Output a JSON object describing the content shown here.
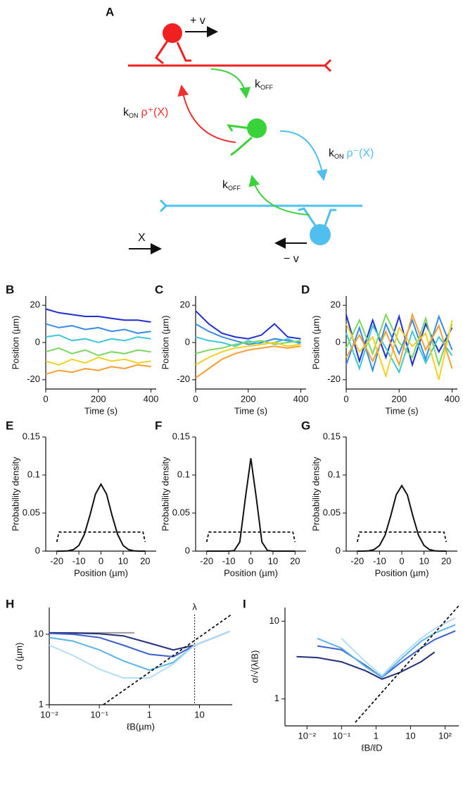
{
  "diagram": {
    "panel": "A",
    "plus_v": "+ v",
    "minus_v": "− v",
    "direction": "X",
    "k_off_top": {
      "k": "k",
      "sub": "OFF"
    },
    "k_off_bottom": {
      "k": "k",
      "sub": "OFF"
    },
    "k_on_plus": {
      "k": "k",
      "sub": "ON",
      "rate": "ρ⁺(X)"
    },
    "k_on_minus": {
      "k": "k",
      "sub": "ON",
      "rate": "ρ⁻(X)"
    }
  },
  "chart_data": [
    {
      "type": "line",
      "panel": "B",
      "xlabel": "Time (s)",
      "ylabel": "Position (µm)",
      "x": [
        0,
        50,
        100,
        150,
        200,
        250,
        300,
        350,
        400
      ],
      "xlim": [
        0,
        420
      ],
      "ylim": [
        -25,
        25
      ],
      "xticks": [
        0,
        200,
        400
      ],
      "yticks": [
        -20,
        0,
        20
      ],
      "series": [
        {
          "color": "#1f2fd0",
          "values": [
            18,
            16,
            15,
            14,
            14,
            13,
            12,
            12,
            11
          ]
        },
        {
          "color": "#3a8ae8",
          "values": [
            10,
            8,
            9,
            7,
            8,
            6,
            7,
            5,
            6
          ]
        },
        {
          "color": "#3cc8d8",
          "values": [
            3,
            4,
            1,
            2,
            0,
            2,
            1,
            3,
            2
          ]
        },
        {
          "color": "#7ad860",
          "values": [
            -5,
            -3,
            -6,
            -4,
            -7,
            -5,
            -6,
            -4,
            -5
          ]
        },
        {
          "color": "#f5d020",
          "values": [
            -10,
            -12,
            -9,
            -11,
            -8,
            -10,
            -9,
            -11,
            -10
          ]
        },
        {
          "color": "#f5a030",
          "values": [
            -17,
            -15,
            -16,
            -14,
            -15,
            -13,
            -14,
            -12,
            -13
          ]
        }
      ]
    },
    {
      "type": "line",
      "panel": "C",
      "xlabel": "Time (s)",
      "ylabel": "Position (µm)",
      "x": [
        0,
        50,
        100,
        150,
        200,
        250,
        300,
        350,
        400
      ],
      "xlim": [
        0,
        420
      ],
      "ylim": [
        -25,
        25
      ],
      "xticks": [
        0,
        200,
        400
      ],
      "yticks": [
        -20,
        0,
        20
      ],
      "series": [
        {
          "color": "#1f2fd0",
          "values": [
            17,
            10,
            5,
            3,
            2,
            4,
            10,
            3,
            2
          ]
        },
        {
          "color": "#3a8ae8",
          "values": [
            10,
            6,
            3,
            1,
            -1,
            0,
            2,
            1,
            0
          ]
        },
        {
          "color": "#3cc8d8",
          "values": [
            3,
            1,
            0,
            -2,
            1,
            -1,
            0,
            2,
            -1
          ]
        },
        {
          "color": "#7ad860",
          "values": [
            -6,
            -4,
            -3,
            -1,
            0,
            1,
            -1,
            0,
            1
          ]
        },
        {
          "color": "#f5d020",
          "values": [
            -12,
            -8,
            -5,
            -3,
            -2,
            -1,
            0,
            -2,
            -1
          ]
        },
        {
          "color": "#f5a030",
          "values": [
            -19,
            -14,
            -9,
            -6,
            -4,
            -3,
            -2,
            -3,
            -2
          ]
        }
      ]
    },
    {
      "type": "line",
      "panel": "D",
      "xlabel": "Time (s)",
      "ylabel": "Position (µm)",
      "x": [
        0,
        50,
        100,
        150,
        200,
        250,
        300,
        350,
        400
      ],
      "xlim": [
        0,
        420
      ],
      "ylim": [
        -25,
        25
      ],
      "xticks": [
        0,
        200,
        400
      ],
      "yticks": [
        -20,
        0,
        20
      ],
      "series": [
        {
          "color": "#1f2fd0",
          "values": [
            15,
            -10,
            12,
            -8,
            14,
            -12,
            10,
            -5,
            8
          ]
        },
        {
          "color": "#3a8ae8",
          "values": [
            -12,
            8,
            -15,
            10,
            -6,
            12,
            -9,
            14,
            -4
          ]
        },
        {
          "color": "#3cc8d8",
          "values": [
            5,
            -14,
            9,
            -3,
            -16,
            6,
            -11,
            3,
            -7
          ]
        },
        {
          "color": "#7ad860",
          "values": [
            -3,
            12,
            -6,
            15,
            0,
            -8,
            13,
            -12,
            10
          ]
        },
        {
          "color": "#f5d020",
          "values": [
            10,
            -5,
            3,
            -18,
            8,
            -2,
            5,
            -20,
            12
          ]
        },
        {
          "color": "#f5a030",
          "values": [
            -8,
            4,
            -10,
            6,
            -12,
            15,
            -4,
            9,
            -14
          ]
        }
      ]
    },
    {
      "type": "line",
      "panel": "E",
      "xlabel": "Position (µm)",
      "ylabel": "Probability density",
      "x": [
        -20,
        -17.5,
        -15,
        -12.5,
        -10,
        -7.5,
        -5,
        -2.5,
        0,
        2.5,
        5,
        7.5,
        10,
        12.5,
        15,
        17.5,
        20
      ],
      "xlim": [
        -25,
        25
      ],
      "ylim": [
        0,
        0.15
      ],
      "xticks": [
        -20,
        -10,
        0,
        10,
        20
      ],
      "yticks": [
        0,
        0.05,
        0.1,
        0.15
      ],
      "series": [
        {
          "color": "#111111",
          "values": [
            0,
            0,
            0.0004,
            0.0019,
            0.0075,
            0.022,
            0.047,
            0.075,
            0.088,
            0.075,
            0.047,
            0.022,
            0.0075,
            0.0019,
            0.0004,
            0,
            0
          ]
        },
        {
          "color": "#111111",
          "dash": true,
          "x": [
            -20,
            -19,
            19,
            20
          ],
          "values": [
            0.012,
            0.025,
            0.025,
            0.012
          ]
        }
      ]
    },
    {
      "type": "line",
      "panel": "F",
      "xlabel": "Position (µm)",
      "ylabel": "Probability density",
      "x": [
        -20,
        -17.5,
        -15,
        -12.5,
        -10,
        -7.5,
        -5,
        -2.5,
        0,
        2.5,
        5,
        7.5,
        10,
        12.5,
        15,
        17.5,
        20
      ],
      "xlim": [
        -25,
        25
      ],
      "ylim": [
        0,
        0.15
      ],
      "xticks": [
        -20,
        -10,
        0,
        10,
        20
      ],
      "yticks": [
        0,
        0.05,
        0.1,
        0.15
      ],
      "series": [
        {
          "color": "#111111",
          "values": [
            0,
            0,
            0,
            0,
            0,
            0.0007,
            0.012,
            0.069,
            0.122,
            0.069,
            0.012,
            0.0007,
            0,
            0,
            0,
            0,
            0
          ]
        },
        {
          "color": "#111111",
          "dash": true,
          "x": [
            -20,
            -19,
            19,
            20
          ],
          "values": [
            0.012,
            0.025,
            0.025,
            0.012
          ]
        }
      ]
    },
    {
      "type": "line",
      "panel": "G",
      "xlabel": "Position (µm)",
      "ylabel": "Probability density",
      "x": [
        -20,
        -17.5,
        -15,
        -12.5,
        -10,
        -7.5,
        -5,
        -2.5,
        0,
        2.5,
        5,
        7.5,
        10,
        12.5,
        15,
        17.5,
        20
      ],
      "xlim": [
        -25,
        25
      ],
      "ylim": [
        0,
        0.15
      ],
      "xticks": [
        -20,
        -10,
        0,
        10,
        20
      ],
      "yticks": [
        0,
        0.05,
        0.1,
        0.15
      ],
      "series": [
        {
          "color": "#111111",
          "values": [
            0,
            0,
            0.0004,
            0.0019,
            0.0074,
            0.021,
            0.046,
            0.074,
            0.086,
            0.074,
            0.046,
            0.021,
            0.0074,
            0.0019,
            0.0004,
            0,
            0
          ]
        },
        {
          "color": "#111111",
          "dash": true,
          "x": [
            -20,
            -19,
            19,
            20
          ],
          "values": [
            0.012,
            0.025,
            0.025,
            0.012
          ]
        }
      ]
    },
    {
      "type": "line",
      "panel": "H",
      "xlabel": "ℓB(µm)",
      "ylabel": "σ (µm)",
      "xscale": "log",
      "yscale": "log",
      "x": [
        0.01,
        0.03,
        0.1,
        0.3,
        1,
        3,
        8,
        20,
        40
      ],
      "xlim": [
        0.01,
        45
      ],
      "ylim": [
        1,
        24
      ],
      "xticks": [
        {
          "value": 0.01,
          "label": "10⁻²"
        },
        {
          "value": 0.1,
          "label": "10⁻¹"
        },
        1,
        10
      ],
      "yticks": [
        1,
        10
      ],
      "vline": {
        "x": 8,
        "label": "λ"
      },
      "series": [
        {
          "color": "#999999",
          "x": [
            0.01,
            0.5
          ],
          "values": [
            10.5,
            10.5
          ]
        },
        {
          "color": "#23307a",
          "values": [
            10.5,
            10.4,
            10.2,
            9.5,
            7.5,
            6,
            7,
            9,
            11
          ]
        },
        {
          "color": "#3a5fcf",
          "values": [
            10.3,
            10,
            9,
            7,
            5.2,
            4.8,
            7,
            9,
            11
          ]
        },
        {
          "color": "#5ab4e6",
          "values": [
            9,
            8,
            6,
            4.2,
            3.1,
            4,
            7,
            9,
            11
          ]
        },
        {
          "color": "#b3ddf5",
          "values": [
            7,
            5,
            3.2,
            2.4,
            2.4,
            3.8,
            7,
            9,
            11
          ]
        },
        {
          "color": "#111111",
          "dash": true,
          "x": [
            0.12,
            45
          ],
          "values": [
            1,
            19.4
          ]
        }
      ]
    },
    {
      "type": "line",
      "panel": "I",
      "xlabel": "ℓB/ℓD",
      "ylabel": "σ/√(λℓB)",
      "xscale": "log",
      "yscale": "log",
      "x": [
        0.005,
        0.02,
        0.1,
        0.5,
        1.5,
        5,
        20,
        50,
        200
      ],
      "xlim": [
        0.0023,
        250
      ],
      "ylim": [
        0.45,
        15
      ],
      "xticks": [
        {
          "value": 0.01,
          "label": "10⁻²"
        },
        {
          "value": 0.1,
          "label": "10⁻¹"
        },
        1,
        10,
        {
          "value": 100,
          "label": "10²"
        }
      ],
      "yticks": [
        1,
        10
      ],
      "series": [
        {
          "color": "#23307a",
          "values": [
            3.5,
            3.4,
            3.0,
            2.3,
            1.8,
            2.2,
            3.0,
            4.0,
            null
          ]
        },
        {
          "color": "#3a5fcf",
          "values": [
            null,
            4.8,
            4.3,
            2.7,
            1.9,
            2.9,
            4.5,
            5.8,
            7.5
          ]
        },
        {
          "color": "#5ab4e6",
          "values": [
            null,
            6,
            4.5,
            2.6,
            1.9,
            3.2,
            5.5,
            7,
            9
          ]
        },
        {
          "color": "#b3ddf5",
          "values": [
            null,
            null,
            6,
            3,
            2,
            3.5,
            6,
            8,
            11
          ]
        },
        {
          "color": "#111111",
          "dash": true,
          "x": [
            0.25,
            250
          ],
          "values": [
            0.5,
            15.8
          ]
        }
      ]
    }
  ]
}
